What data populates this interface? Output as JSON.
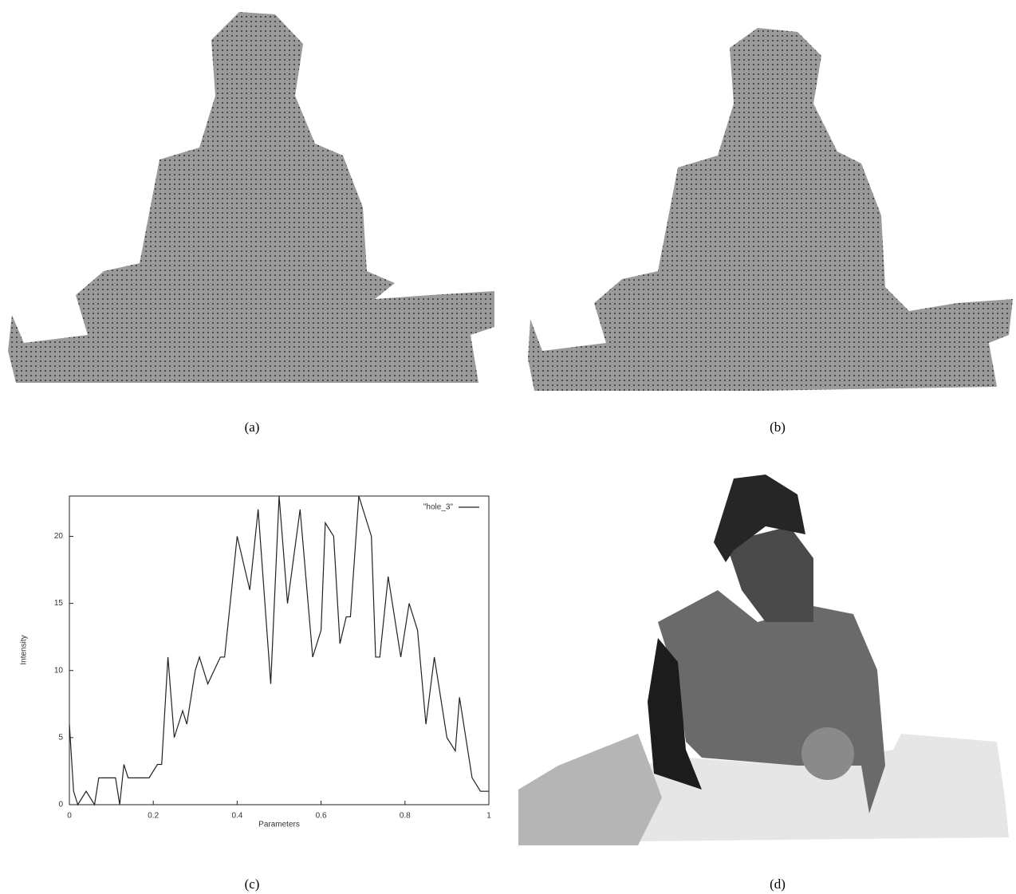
{
  "captions": {
    "a": "(a)",
    "b": "(b)",
    "c": "(c)",
    "d": "(d)"
  },
  "chart_data": {
    "type": "line",
    "x_label": "Parameters",
    "y_label": "Intensity",
    "x": [
      0,
      0.01,
      0.02,
      0.04,
      0.06,
      0.07,
      0.1,
      0.11,
      0.12,
      0.13,
      0.14,
      0.19,
      0.21,
      0.22,
      0.235,
      0.25,
      0.27,
      0.28,
      0.3,
      0.31,
      0.33,
      0.36,
      0.37,
      0.4,
      0.43,
      0.45,
      0.48,
      0.5,
      0.52,
      0.55,
      0.58,
      0.6,
      0.61,
      0.63,
      0.645,
      0.66,
      0.67,
      0.69,
      0.72,
      0.73,
      0.74,
      0.76,
      0.79,
      0.81,
      0.83,
      0.85,
      0.87,
      0.9,
      0.92,
      0.93,
      0.96,
      0.98,
      1
    ],
    "series": [
      {
        "name": "\"hole_3\"",
        "color": "#222222",
        "values": [
          6,
          1,
          0,
          1,
          0,
          2,
          2,
          2,
          0,
          3,
          2,
          2,
          3,
          3,
          11,
          5,
          7,
          6,
          10,
          11,
          9,
          11,
          11,
          20,
          16,
          22,
          9,
          23,
          15,
          22,
          11,
          13,
          21,
          20,
          12,
          14,
          14,
          23,
          20,
          11,
          11,
          17,
          11,
          15,
          13,
          6,
          11,
          5,
          4,
          8,
          2,
          1,
          1
        ]
      }
    ],
    "xlim": [
      0,
      1
    ],
    "xticks": [
      0,
      0.2,
      0.4,
      0.6,
      0.8,
      1
    ],
    "ylim": [
      0,
      23
    ],
    "yticks": [
      0,
      5,
      10,
      15,
      20
    ],
    "legend": "upper right"
  }
}
